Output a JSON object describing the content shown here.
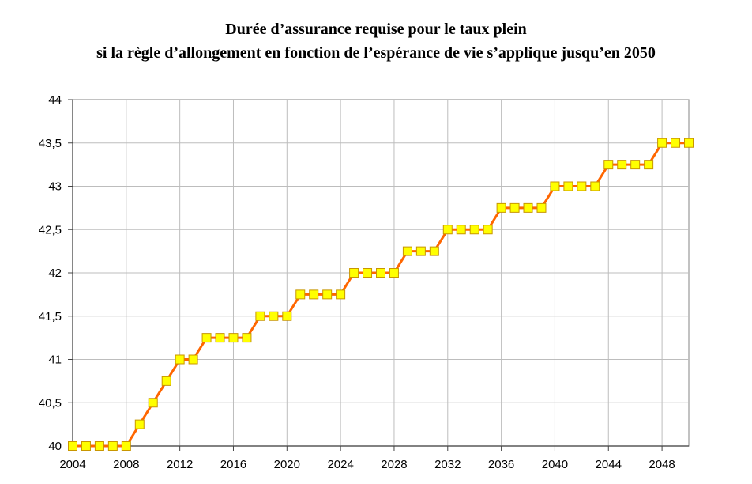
{
  "chart_data": {
    "type": "line",
    "title": "Durée d’assurance requise pour le taux plein",
    "subtitle": "si la règle d’allongement en fonction de l’espérance de vie s’applique jusqu’en 2050",
    "xlabel": "",
    "ylabel": "",
    "xlim": [
      2004,
      2050
    ],
    "ylim": [
      40,
      44
    ],
    "x_ticks": [
      "2004",
      "2008",
      "2012",
      "2016",
      "2020",
      "2024",
      "2028",
      "2032",
      "2036",
      "2040",
      "2044",
      "2048"
    ],
    "y_ticks": [
      "40",
      "40,5",
      "41",
      "41,5",
      "42",
      "42,5",
      "43",
      "43,5",
      "44"
    ],
    "grid": true,
    "legend": "none",
    "series": [
      {
        "color": "#ff6600",
        "marker_color": "#ffff00",
        "x": [
          2004,
          2005,
          2006,
          2007,
          2008,
          2009,
          2010,
          2011,
          2012,
          2013,
          2014,
          2015,
          2016,
          2017,
          2018,
          2019,
          2020,
          2021,
          2022,
          2023,
          2024,
          2025,
          2026,
          2027,
          2028,
          2029,
          2030,
          2031,
          2032,
          2033,
          2034,
          2035,
          2036,
          2037,
          2038,
          2039,
          2040,
          2041,
          2042,
          2043,
          2044,
          2045,
          2046,
          2047,
          2048,
          2049,
          2050
        ],
        "values": [
          40,
          40,
          40,
          40,
          40,
          40.25,
          40.5,
          40.75,
          41,
          41,
          41.25,
          41.25,
          41.25,
          41.25,
          41.5,
          41.5,
          41.5,
          41.75,
          41.75,
          41.75,
          41.75,
          42,
          42,
          42,
          42,
          42.25,
          42.25,
          42.25,
          42.5,
          42.5,
          42.5,
          42.5,
          42.75,
          42.75,
          42.75,
          42.75,
          43,
          43,
          43,
          43,
          43.25,
          43.25,
          43.25,
          43.25,
          43.5,
          43.5,
          43.5
        ]
      }
    ]
  }
}
